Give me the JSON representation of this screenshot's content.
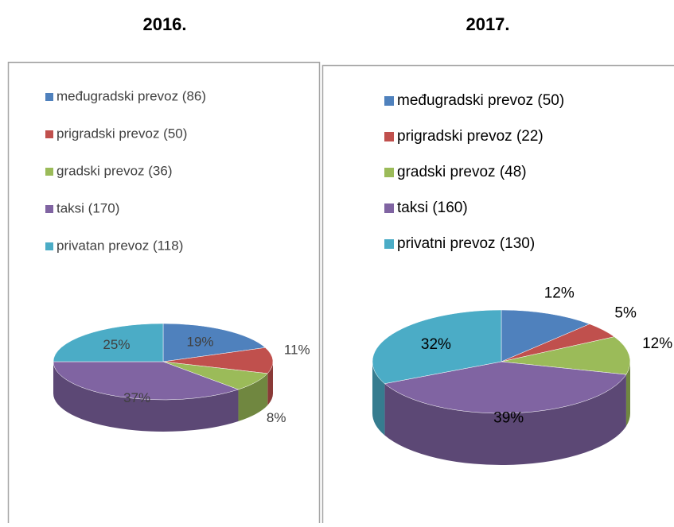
{
  "chart_data": [
    {
      "type": "pie",
      "title": "2016.",
      "categories": [
        "međugradski prevoz (86)",
        "prigradski prevoz (50)",
        "gradski prevoz (36)",
        "taksi (170)",
        "privatan prevoz (118)"
      ],
      "values": [
        19,
        11,
        8,
        37,
        25
      ],
      "value_labels": [
        "19%",
        "11%",
        "8%",
        "37%",
        "25%"
      ],
      "colors": [
        "#4f81bd",
        "#c0504d",
        "#9bbb59",
        "#8064a2",
        "#4bacc6"
      ],
      "legend": "top"
    },
    {
      "type": "pie",
      "title": "2017.",
      "categories": [
        "međugradski prevoz (50)",
        "prigradski prevoz (22)",
        "gradski prevoz (48)",
        "taksi (160)",
        "privatni prevoz (130)"
      ],
      "values": [
        12,
        5,
        12,
        39,
        32
      ],
      "value_labels": [
        "12%",
        "5%",
        "12%",
        "39%",
        "32%"
      ],
      "colors": [
        "#4f81bd",
        "#c0504d",
        "#9bbb59",
        "#8064a2",
        "#4bacc6"
      ],
      "legend": "top"
    }
  ]
}
